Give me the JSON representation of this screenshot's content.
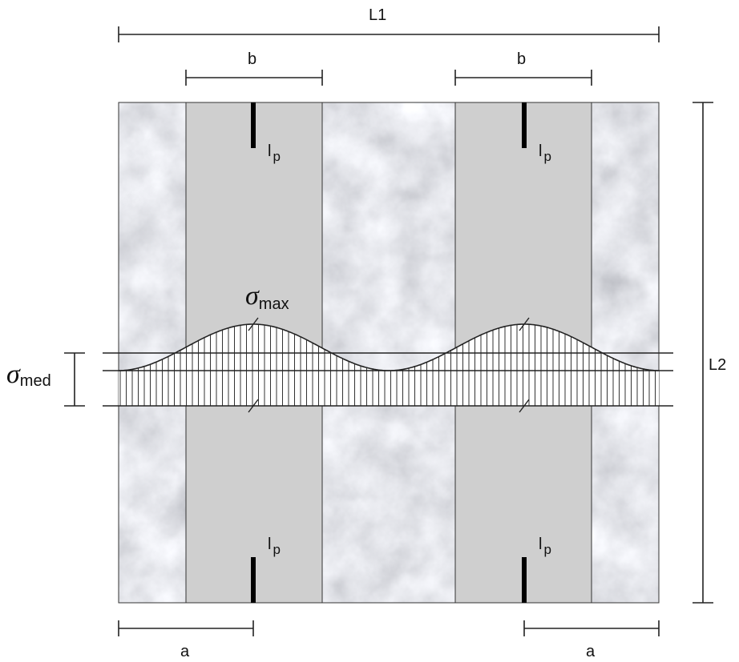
{
  "dimensions": {
    "L1": "L1",
    "L2": "L2",
    "b": [
      "b",
      "b"
    ],
    "a": [
      "a",
      "a"
    ]
  },
  "anchors": [
    {
      "symbol": "l",
      "subscript": "p"
    },
    {
      "symbol": "l",
      "subscript": "p"
    },
    {
      "symbol": "l",
      "subscript": "p"
    },
    {
      "symbol": "l",
      "subscript": "p"
    }
  ],
  "stress": {
    "max": {
      "symbol": "σ",
      "subscript": "max"
    },
    "med": {
      "symbol": "σ",
      "subscript": "med"
    }
  }
}
